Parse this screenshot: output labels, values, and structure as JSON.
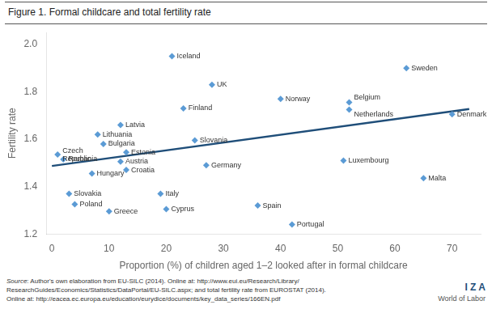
{
  "chart_data": {
    "type": "scatter",
    "title": "Figure 1. Formal childcare and total fertility rate",
    "x_label": "Proportion (%) of children aged 1–2 looked after in formal childcare",
    "y_label": "Fertility rate",
    "xlim": [
      -1,
      75
    ],
    "ylim": [
      1.2,
      2.05
    ],
    "xticks": [
      0,
      10,
      20,
      30,
      40,
      50,
      60,
      70
    ],
    "yticks": [
      1.2,
      1.4,
      1.6,
      1.8,
      {
        "value": 2.0,
        "label": "2.0"
      }
    ],
    "grid": false,
    "series": [
      {
        "type": "scatter",
        "color": "#5b9bd5",
        "marker": "diamond",
        "x": [
          21,
          62,
          28,
          40,
          52,
          52,
          23,
          12,
          8,
          9,
          1,
          13,
          2,
          12,
          25,
          13,
          7,
          27,
          51,
          70,
          65,
          19,
          3,
          4,
          10,
          20,
          36,
          42
        ],
        "values": [
          1.95,
          1.9,
          1.83,
          1.77,
          1.755,
          1.725,
          1.73,
          1.66,
          1.62,
          1.58,
          1.535,
          1.545,
          1.515,
          1.505,
          1.595,
          1.47,
          1.455,
          1.49,
          1.51,
          1.705,
          1.435,
          1.37,
          1.37,
          1.325,
          1.295,
          1.305,
          1.32,
          1.24
        ],
        "labels": [
          "Iceland",
          "Sweden",
          "UK",
          "Norway",
          "Belgium",
          "Netherlands",
          "Finland",
          "Latvia",
          "Lithuania",
          "Bulgaria",
          "Czech\nRepublic",
          "Estonia",
          "Romania",
          "Austria",
          "Slovania",
          "Croatia",
          "Hungary",
          "Germany",
          "Luxembourg",
          "Denmark",
          "Malta",
          "Italy",
          "Slovakia",
          "Poland",
          "Greece",
          "Cyprus",
          "Spain",
          "Portugal"
        ]
      },
      {
        "type": "line",
        "color": "#1f4e79",
        "x": [
          0,
          73
        ],
        "values": [
          1.487,
          1.727
        ]
      }
    ],
    "annotations": [
      "Source: Author's own elaboration from EU-SILC (2014). Online at: http://www.eui.eu/Research/Library/\nResearchGuides/Economics/Statistics/DataPortal/EU-SILC.aspx; and total fertility rate from EUROSTAT (2014).\nOnline at: http://eacea.ec.europa.eu/education/eurydice/documents/key_data_series/166EN.pdf",
      "I Z A",
      "World of Labor"
    ]
  }
}
